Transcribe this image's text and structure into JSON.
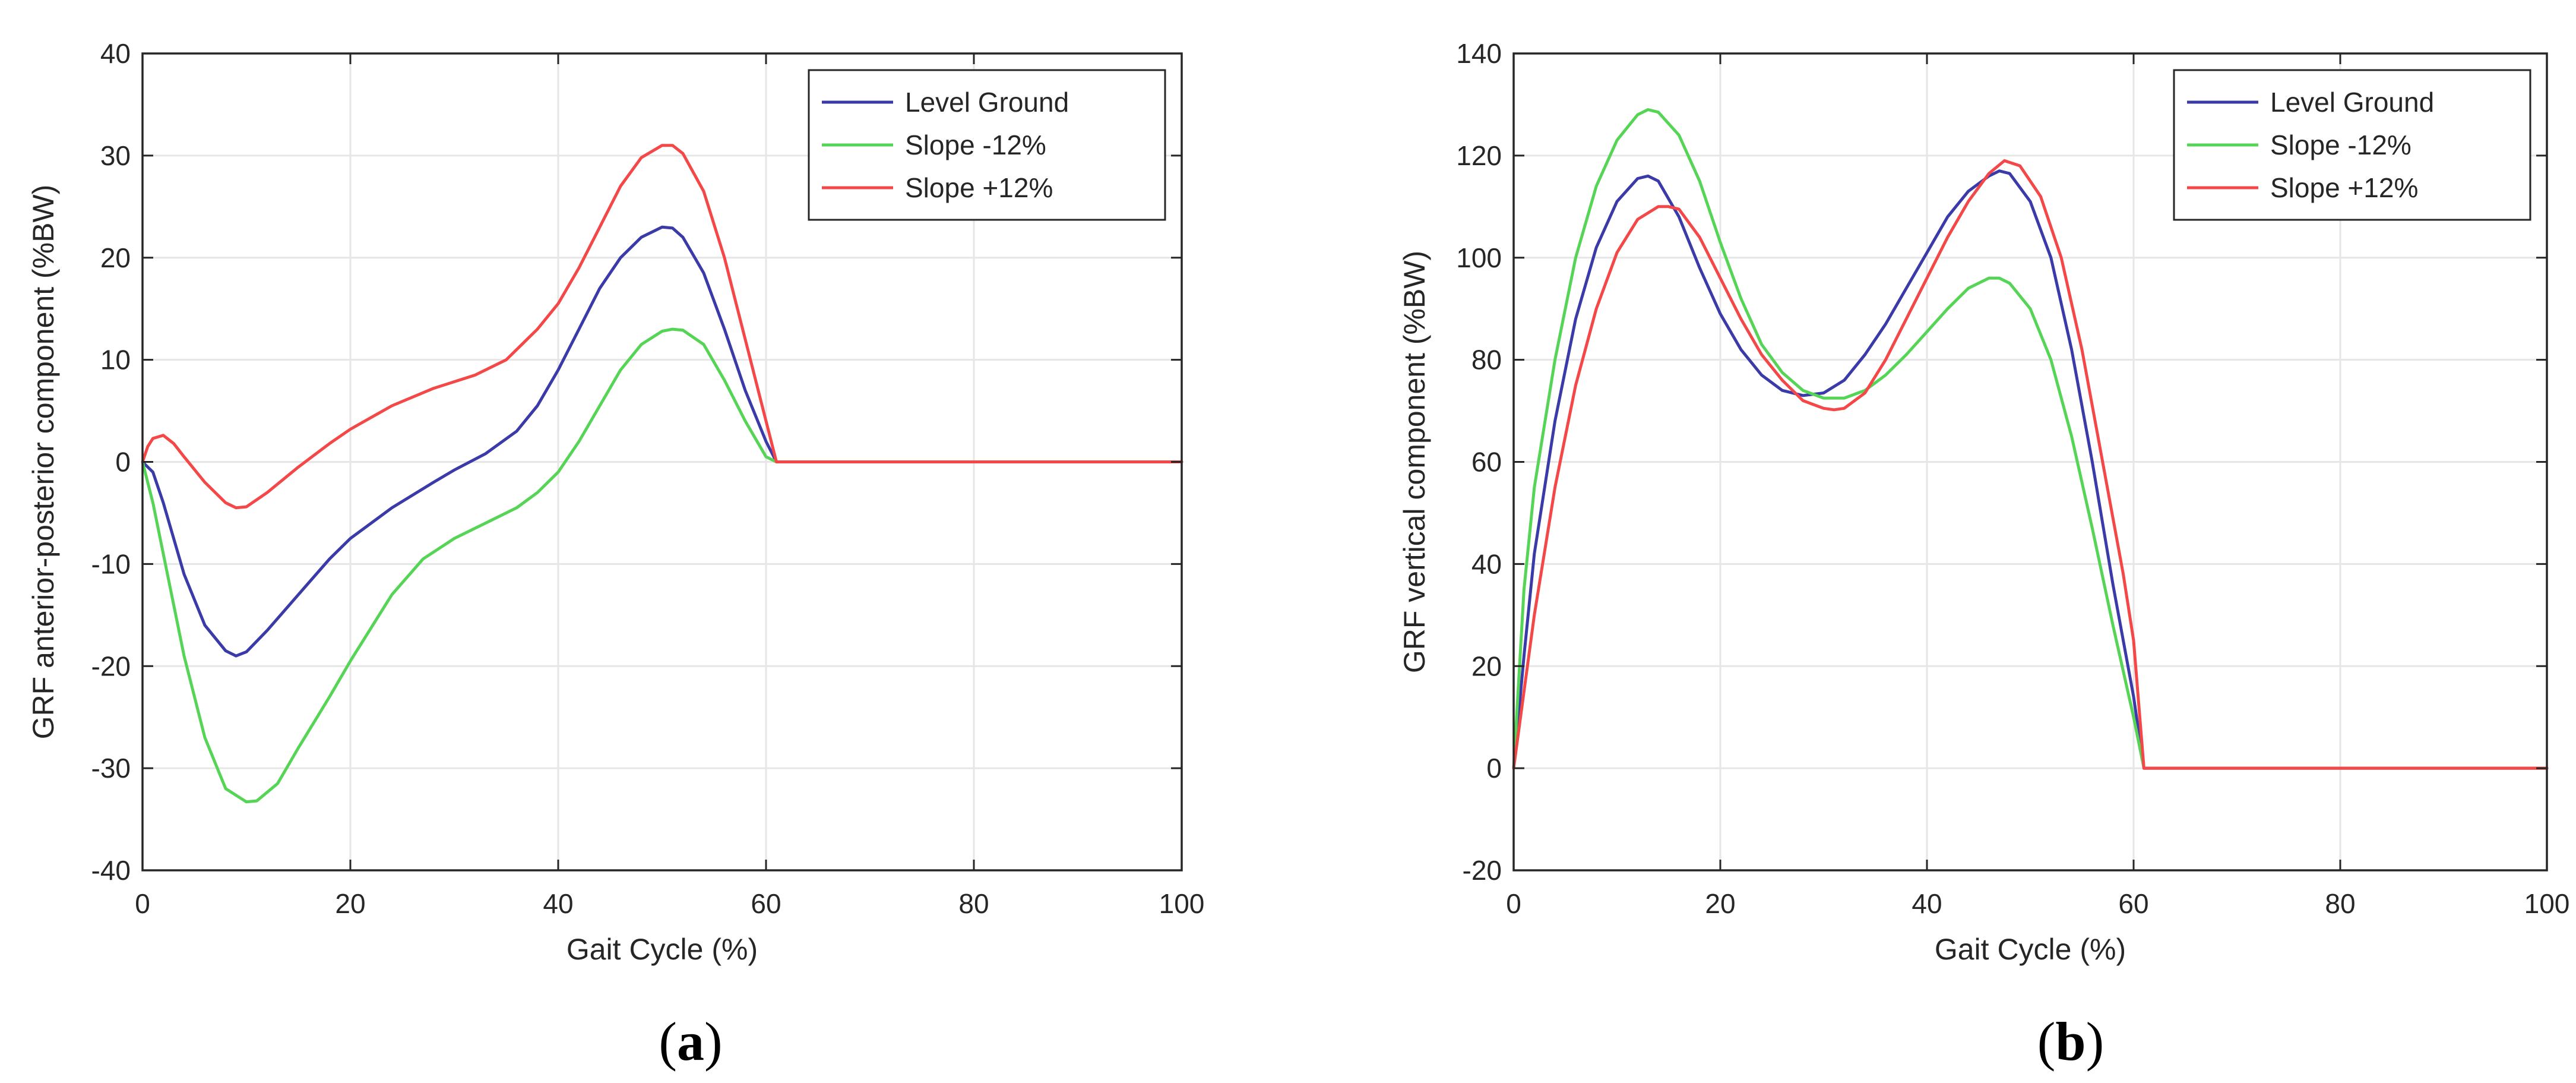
{
  "chart_data": [
    {
      "type": "line",
      "panel": "a",
      "caption": "a",
      "xlabel": "Gait Cycle (%)",
      "ylabel": "GRF anterior-posterior component (%BW)",
      "xlim": [
        0,
        100
      ],
      "ylim": [
        -40,
        40
      ],
      "xticks": [
        0,
        20,
        40,
        60,
        80,
        100
      ],
      "yticks": [
        -40,
        -30,
        -20,
        -10,
        0,
        10,
        20,
        30,
        40
      ],
      "grid": true,
      "legend_position": "top-right",
      "series": [
        {
          "name": "Level Ground",
          "color": "#3a3aa8",
          "points": [
            [
              0,
              0
            ],
            [
              1,
              -1
            ],
            [
              2,
              -4
            ],
            [
              4,
              -11
            ],
            [
              6,
              -16
            ],
            [
              8,
              -18.5
            ],
            [
              9,
              -19
            ],
            [
              10,
              -18.6
            ],
            [
              12,
              -16.5
            ],
            [
              15,
              -13
            ],
            [
              18,
              -9.5
            ],
            [
              20,
              -7.5
            ],
            [
              24,
              -4.5
            ],
            [
              28,
              -2
            ],
            [
              30,
              -0.8
            ],
            [
              33,
              0.8
            ],
            [
              36,
              3
            ],
            [
              38,
              5.5
            ],
            [
              40,
              9
            ],
            [
              42,
              13
            ],
            [
              44,
              17
            ],
            [
              46,
              20
            ],
            [
              48,
              22
            ],
            [
              50,
              23
            ],
            [
              51,
              22.9
            ],
            [
              52,
              22
            ],
            [
              54,
              18.5
            ],
            [
              56,
              13
            ],
            [
              58,
              7
            ],
            [
              60,
              2
            ],
            [
              61,
              0
            ],
            [
              62,
              0
            ],
            [
              70,
              0
            ],
            [
              80,
              0
            ],
            [
              90,
              0
            ],
            [
              100,
              0
            ]
          ]
        },
        {
          "name": "Slope -12%",
          "color": "#55d455",
          "points": [
            [
              0,
              0
            ],
            [
              1,
              -4
            ],
            [
              2,
              -9
            ],
            [
              4,
              -19
            ],
            [
              6,
              -27
            ],
            [
              8,
              -32
            ],
            [
              10,
              -33.3
            ],
            [
              11,
              -33.2
            ],
            [
              13,
              -31.5
            ],
            [
              15,
              -28
            ],
            [
              18,
              -23
            ],
            [
              20,
              -19.5
            ],
            [
              24,
              -13
            ],
            [
              27,
              -9.5
            ],
            [
              30,
              -7.5
            ],
            [
              33,
              -6
            ],
            [
              36,
              -4.5
            ],
            [
              38,
              -3
            ],
            [
              40,
              -1
            ],
            [
              42,
              2
            ],
            [
              44,
              5.5
            ],
            [
              46,
              9
            ],
            [
              48,
              11.5
            ],
            [
              50,
              12.8
            ],
            [
              51,
              13
            ],
            [
              52,
              12.9
            ],
            [
              54,
              11.5
            ],
            [
              56,
              8
            ],
            [
              58,
              4
            ],
            [
              60,
              0.5
            ],
            [
              61,
              0
            ],
            [
              70,
              0
            ],
            [
              80,
              0
            ],
            [
              90,
              0
            ],
            [
              100,
              0
            ]
          ]
        },
        {
          "name": "Slope +12%",
          "color": "#f44848",
          "points": [
            [
              0,
              0
            ],
            [
              0.5,
              1.5
            ],
            [
              1,
              2.3
            ],
            [
              2,
              2.6
            ],
            [
              3,
              1.8
            ],
            [
              4,
              0.5
            ],
            [
              6,
              -2
            ],
            [
              8,
              -4
            ],
            [
              9,
              -4.5
            ],
            [
              10,
              -4.4
            ],
            [
              12,
              -3
            ],
            [
              15,
              -0.5
            ],
            [
              18,
              1.8
            ],
            [
              20,
              3.2
            ],
            [
              24,
              5.5
            ],
            [
              28,
              7.2
            ],
            [
              32,
              8.5
            ],
            [
              35,
              10
            ],
            [
              38,
              13
            ],
            [
              40,
              15.5
            ],
            [
              42,
              19
            ],
            [
              44,
              23
            ],
            [
              46,
              27
            ],
            [
              48,
              29.8
            ],
            [
              50,
              31
            ],
            [
              51,
              31
            ],
            [
              52,
              30.2
            ],
            [
              54,
              26.5
            ],
            [
              56,
              20
            ],
            [
              58,
              12
            ],
            [
              60,
              4
            ],
            [
              61,
              0
            ],
            [
              62,
              0
            ],
            [
              70,
              0
            ],
            [
              80,
              0
            ],
            [
              90,
              0
            ],
            [
              100,
              0
            ]
          ]
        }
      ]
    },
    {
      "type": "line",
      "panel": "b",
      "caption": "b",
      "xlabel": "Gait Cycle (%)",
      "ylabel": "GRF vertical component (%BW)",
      "xlim": [
        0,
        100
      ],
      "ylim": [
        -20,
        140
      ],
      "xticks": [
        0,
        20,
        40,
        60,
        80,
        100
      ],
      "yticks": [
        -20,
        0,
        20,
        40,
        60,
        80,
        100,
        120,
        140
      ],
      "grid": true,
      "legend_position": "top-right",
      "series": [
        {
          "name": "Level Ground",
          "color": "#3a3aa8",
          "points": [
            [
              0,
              0
            ],
            [
              1,
              22
            ],
            [
              2,
              42
            ],
            [
              4,
              68
            ],
            [
              6,
              88
            ],
            [
              8,
              102
            ],
            [
              10,
              111
            ],
            [
              12,
              115.5
            ],
            [
              13,
              116
            ],
            [
              14,
              115
            ],
            [
              16,
              108
            ],
            [
              18,
              98
            ],
            [
              20,
              89
            ],
            [
              22,
              82
            ],
            [
              24,
              77
            ],
            [
              26,
              74
            ],
            [
              28,
              73
            ],
            [
              30,
              73.5
            ],
            [
              32,
              76
            ],
            [
              34,
              81
            ],
            [
              36,
              87
            ],
            [
              38,
              94
            ],
            [
              40,
              101
            ],
            [
              42,
              108
            ],
            [
              44,
              113
            ],
            [
              46,
              116
            ],
            [
              47,
              117
            ],
            [
              48,
              116.5
            ],
            [
              50,
              111
            ],
            [
              52,
              100
            ],
            [
              54,
              82
            ],
            [
              56,
              60
            ],
            [
              58,
              36
            ],
            [
              60,
              14
            ],
            [
              61,
              0
            ],
            [
              62,
              0
            ],
            [
              70,
              0
            ],
            [
              80,
              0
            ],
            [
              90,
              0
            ],
            [
              100,
              0
            ]
          ]
        },
        {
          "name": "Slope -12%",
          "color": "#55d455",
          "points": [
            [
              0,
              0
            ],
            [
              1,
              35
            ],
            [
              2,
              55
            ],
            [
              4,
              80
            ],
            [
              6,
              100
            ],
            [
              8,
              114
            ],
            [
              10,
              123
            ],
            [
              12,
              128
            ],
            [
              13,
              129
            ],
            [
              14,
              128.5
            ],
            [
              16,
              124
            ],
            [
              18,
              115
            ],
            [
              20,
              103
            ],
            [
              22,
              92
            ],
            [
              24,
              83
            ],
            [
              26,
              77.5
            ],
            [
              28,
              74
            ],
            [
              30,
              72.5
            ],
            [
              32,
              72.5
            ],
            [
              34,
              74
            ],
            [
              36,
              77
            ],
            [
              38,
              81
            ],
            [
              40,
              85.5
            ],
            [
              42,
              90
            ],
            [
              44,
              94
            ],
            [
              46,
              96
            ],
            [
              47,
              96
            ],
            [
              48,
              95
            ],
            [
              50,
              90
            ],
            [
              52,
              80
            ],
            [
              54,
              65
            ],
            [
              56,
              47
            ],
            [
              58,
              28
            ],
            [
              60,
              10
            ],
            [
              61,
              0
            ],
            [
              70,
              0
            ],
            [
              80,
              0
            ],
            [
              90,
              0
            ],
            [
              100,
              0
            ]
          ]
        },
        {
          "name": "Slope +12%",
          "color": "#f44848",
          "points": [
            [
              0,
              0
            ],
            [
              1,
              15
            ],
            [
              2,
              30
            ],
            [
              4,
              55
            ],
            [
              6,
              75
            ],
            [
              8,
              90
            ],
            [
              10,
              101
            ],
            [
              12,
              107.5
            ],
            [
              14,
              110
            ],
            [
              15,
              110
            ],
            [
              16,
              109.5
            ],
            [
              18,
              104
            ],
            [
              20,
              96
            ],
            [
              22,
              88
            ],
            [
              24,
              81
            ],
            [
              26,
              76
            ],
            [
              28,
              72
            ],
            [
              30,
              70.5
            ],
            [
              31,
              70.2
            ],
            [
              32,
              70.5
            ],
            [
              34,
              73.5
            ],
            [
              36,
              80
            ],
            [
              38,
              88
            ],
            [
              40,
              96
            ],
            [
              42,
              104
            ],
            [
              44,
              111
            ],
            [
              46,
              116.5
            ],
            [
              47.5,
              119
            ],
            [
              49,
              118
            ],
            [
              51,
              112
            ],
            [
              53,
              100
            ],
            [
              55,
              82
            ],
            [
              57,
              60
            ],
            [
              59,
              38
            ],
            [
              60,
              25
            ],
            [
              61,
              0
            ],
            [
              62,
              0
            ],
            [
              70,
              0
            ],
            [
              80,
              0
            ],
            [
              90,
              0
            ],
            [
              100,
              0
            ]
          ]
        }
      ]
    }
  ]
}
